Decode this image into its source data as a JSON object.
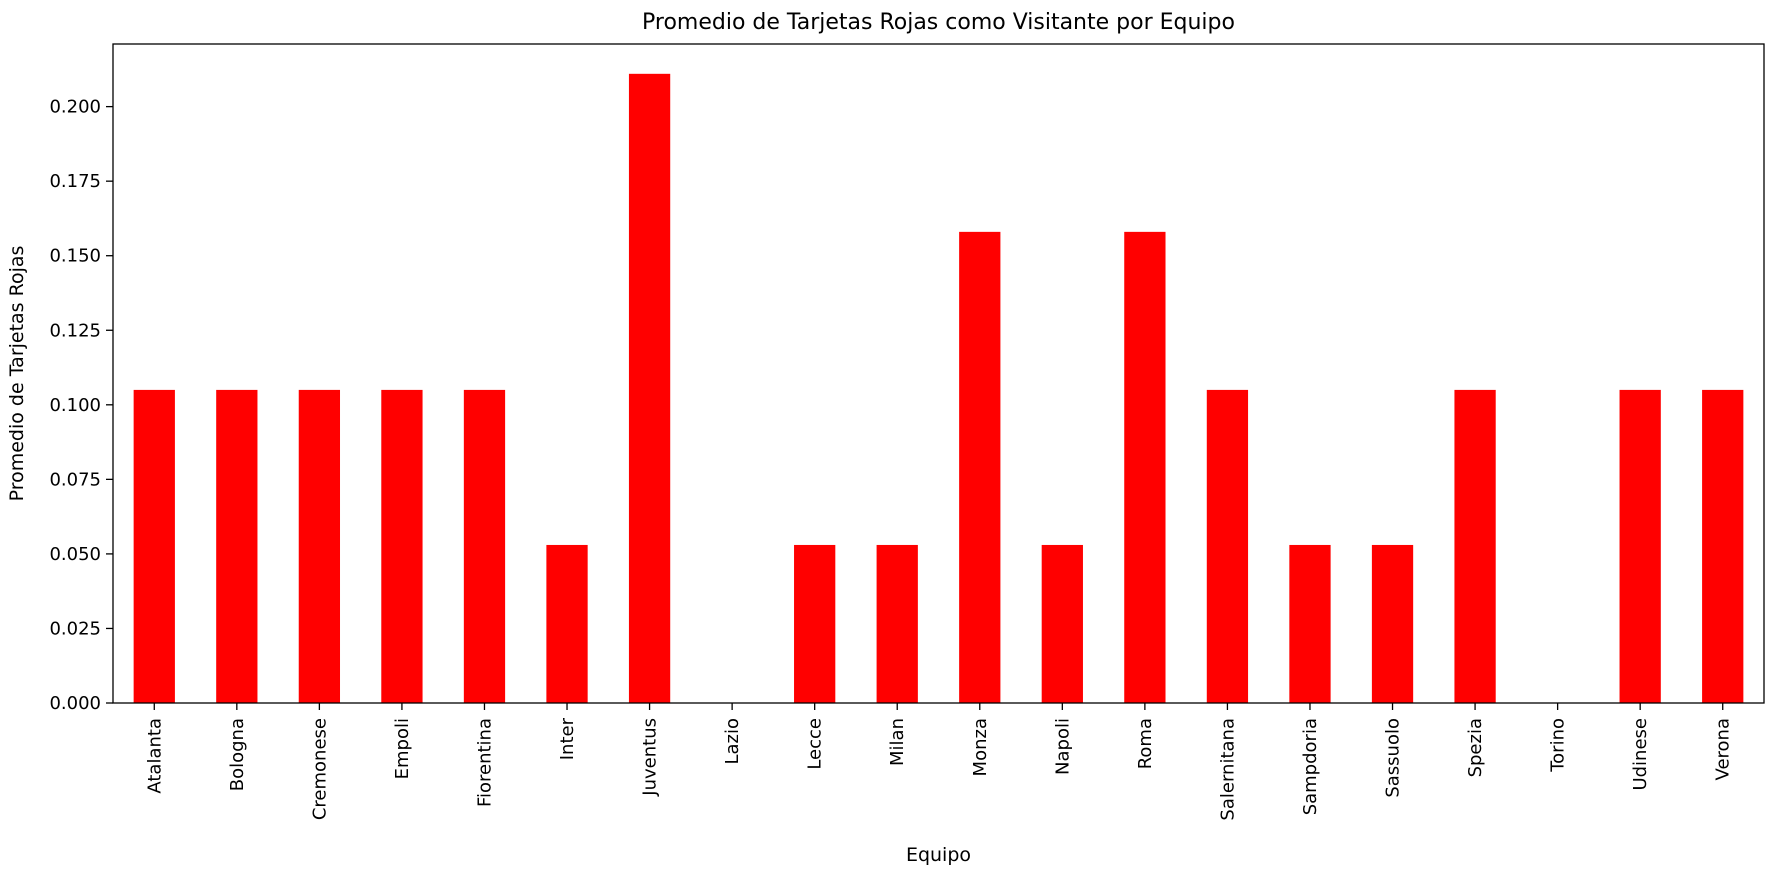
{
  "chart_data": {
    "type": "bar",
    "title": "Promedio de Tarjetas Rojas como Visitante por Equipo",
    "xlabel": "Equipo",
    "ylabel": "Promedio de Tarjetas Rojas",
    "categories": [
      "Atalanta",
      "Bologna",
      "Cremonese",
      "Empoli",
      "Fiorentina",
      "Inter",
      "Juventus",
      "Lazio",
      "Lecce",
      "Milan",
      "Monza",
      "Napoli",
      "Roma",
      "Salernitana",
      "Sampdoria",
      "Sassuolo",
      "Spezia",
      "Torino",
      "Udinese",
      "Verona"
    ],
    "values": [
      0.105,
      0.105,
      0.105,
      0.105,
      0.105,
      0.053,
      0.211,
      0.0,
      0.053,
      0.053,
      0.158,
      0.053,
      0.158,
      0.105,
      0.053,
      0.053,
      0.105,
      0.0,
      0.105,
      0.105
    ],
    "ylim": [
      0,
      0.221
    ],
    "yticks": [
      "0.000",
      "0.025",
      "0.050",
      "0.075",
      "0.100",
      "0.125",
      "0.150",
      "0.175",
      "0.200"
    ],
    "bar_color": "#ff0000",
    "grid": false,
    "legend": "none"
  }
}
